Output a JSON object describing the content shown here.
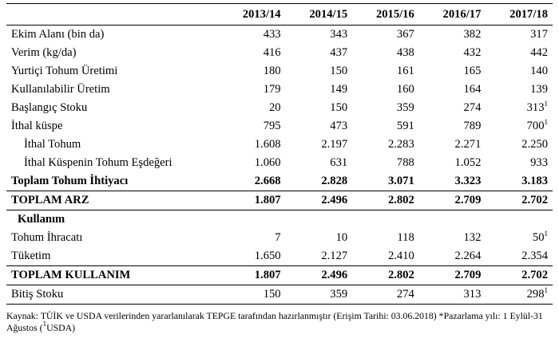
{
  "table": {
    "headers": [
      "",
      "2013/14",
      "2014/15",
      "2015/16",
      "2016/17",
      "2017/18"
    ],
    "rows": [
      {
        "label": "Ekim Alanı (bin da)",
        "values": [
          "433",
          "343",
          "367",
          "382",
          "317"
        ]
      },
      {
        "label": "Verim (kg/da)",
        "values": [
          "416",
          "437",
          "438",
          "432",
          "442"
        ]
      },
      {
        "label": "Yurtiçi Tohum Üretimi",
        "values": [
          "180",
          "150",
          "161",
          "165",
          "140"
        ]
      },
      {
        "label": "Kullanılabilir Üretim",
        "values": [
          "179",
          "149",
          "160",
          "164",
          "139"
        ]
      },
      {
        "label": "Başlangıç Stoku",
        "values": [
          "20",
          "150",
          "359",
          "274",
          "313"
        ],
        "last_sup": "1"
      },
      {
        "label": "İthal küspe",
        "values": [
          "795",
          "473",
          "591",
          "789",
          "700"
        ],
        "last_sup": "1"
      },
      {
        "label": "İthal Tohum",
        "values": [
          "1.608",
          "2.197",
          "2.283",
          "2.271",
          "2.250"
        ]
      },
      {
        "label": "İthal Küspenin Tohum Eşdeğeri",
        "values": [
          "1.060",
          "631",
          "788",
          "1.052",
          "933"
        ]
      },
      {
        "label": "Toplam Tohum İhtiyacı",
        "values": [
          "2.668",
          "2.828",
          "3.071",
          "3.323",
          "3.183"
        ]
      },
      {
        "label": "TOPLAM ARZ",
        "values": [
          "1.807",
          "2.496",
          "2.802",
          "2.709",
          "2.702"
        ]
      },
      {
        "label": "Kullanım"
      },
      {
        "label": "Tohum İhracatı",
        "values": [
          "7",
          "10",
          "118",
          "132",
          "50"
        ],
        "last_sup": "1"
      },
      {
        "label": "Tüketim",
        "values": [
          "1.650",
          "2.127",
          "2.410",
          "2.264",
          "2.354"
        ]
      },
      {
        "label": "TOPLAM KULLANIM",
        "values": [
          "1.807",
          "2.496",
          "2.802",
          "2.709",
          "2.702"
        ]
      },
      {
        "label": "Bitiş Stoku",
        "values": [
          "150",
          "359",
          "274",
          "313",
          "298"
        ],
        "last_sup": "1"
      }
    ]
  },
  "source_note_1": "Kaynak: TÜİK ve USDA verilerinden yararlanılarak TEPGE tarafından hazırlanmıştır (Erişim Tarihi: 03.06.2018) *Pazarlama yılı: 1 Eylül-31 Ağustos (",
  "source_note_sup": "1",
  "source_note_2": "USDA)"
}
